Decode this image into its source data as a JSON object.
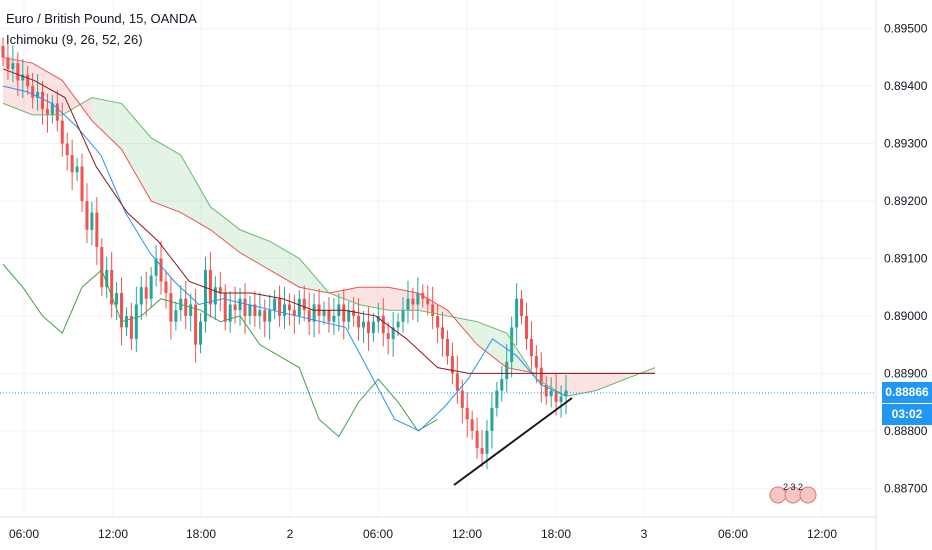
{
  "legend": {
    "symbol": "Euro / British Pound, 15, OANDA",
    "indicator": "Ichimoku (9, 26, 52, 26)"
  },
  "colors": {
    "up": "#26a69a",
    "down": "#ef5350",
    "tenkan": "#2196f3",
    "kijun": "#8b1a1a",
    "chikou": "#43a047",
    "span_a": "#66bb6a",
    "span_b": "#ef5350",
    "price_line": "#2196f3"
  },
  "current": {
    "price": "0.88866",
    "countdown": "03:02"
  },
  "chart_data": {
    "type": "candlestick",
    "title": "Euro / British Pound, 15, OANDA",
    "ylim": [
      0.8865,
      0.8955
    ],
    "y_ticks": [
      0.895,
      0.894,
      0.893,
      0.892,
      0.891,
      0.89,
      0.889,
      0.888,
      0.887
    ],
    "y_tick_labels": [
      "0.89500",
      "0.89400",
      "0.89300",
      "0.89200",
      "0.89100",
      "0.89000",
      "0.88900",
      "0.88800",
      "0.88700"
    ],
    "x_tick_labels": [
      "06:00",
      "12:00",
      "18:00",
      "2",
      "06:00",
      "12:00",
      "18:00",
      "3",
      "06:00",
      "12:00"
    ],
    "grid": true,
    "candles_close": [
      0.8945,
      0.8943,
      0.8944,
      0.8941,
      0.8942,
      0.894,
      0.8938,
      0.8939,
      0.8936,
      0.8935,
      0.8937,
      0.8934,
      0.893,
      0.8928,
      0.8925,
      0.8926,
      0.892,
      0.8915,
      0.8918,
      0.8912,
      0.8905,
      0.8908,
      0.8902,
      0.8904,
      0.8898,
      0.89,
      0.8896,
      0.8902,
      0.8905,
      0.8903,
      0.8907,
      0.891,
      0.8906,
      0.8904,
      0.8899,
      0.8901,
      0.8903,
      0.89,
      0.8902,
      0.8895,
      0.8899,
      0.8908,
      0.8902,
      0.8905,
      0.8904,
      0.8899,
      0.8902,
      0.8901,
      0.8903,
      0.89,
      0.8902,
      0.89,
      0.8901,
      0.8899,
      0.8901,
      0.8903,
      0.89,
      0.8902,
      0.8901,
      0.89,
      0.8903,
      0.8901,
      0.8899,
      0.8902,
      0.89,
      0.8901,
      0.8899,
      0.89,
      0.8902,
      0.8899,
      0.8901,
      0.89,
      0.8898,
      0.8899,
      0.8897,
      0.8899,
      0.89,
      0.8897,
      0.8896,
      0.8898,
      0.8899,
      0.8901,
      0.8903,
      0.8902,
      0.8904,
      0.8903,
      0.8902,
      0.89,
      0.8898,
      0.8896,
      0.8893,
      0.889,
      0.8887,
      0.8884,
      0.8882,
      0.888,
      0.8877,
      0.8876,
      0.888,
      0.8884,
      0.8887,
      0.8889,
      0.8892,
      0.8898,
      0.8903,
      0.89,
      0.8896,
      0.8893,
      0.8891,
      0.8888,
      0.8886,
      0.8887,
      0.8885,
      0.8886,
      0.8887
    ],
    "tenkan": [
      0.894,
      0.8939,
      0.8937,
      0.8933,
      0.8928,
      0.8918,
      0.8911,
      0.8906,
      0.8902,
      0.8903,
      0.8902,
      0.8901,
      0.89,
      0.8899,
      0.8898,
      0.889,
      0.8882,
      0.888,
      0.8884,
      0.8889,
      0.8896,
      0.8893,
      0.8888,
      0.8886
    ],
    "kijun": [
      0.8943,
      0.8941,
      0.8938,
      0.8926,
      0.8918,
      0.8913,
      0.8906,
      0.8904,
      0.8904,
      0.8903,
      0.8901,
      0.8901,
      0.89,
      0.8896,
      0.8891,
      0.889,
      0.889,
      0.889,
      0.889,
      0.889,
      0.889,
      0.889
    ],
    "senkou_a": [
      0.8937,
      0.8935,
      0.8935,
      0.8938,
      0.8937,
      0.8931,
      0.8928,
      0.8919,
      0.8915,
      0.8913,
      0.891,
      0.8904,
      0.8902,
      0.8901,
      0.8901,
      0.89,
      0.8899,
      0.8897,
      0.8889,
      0.8886,
      0.8887,
      0.8889,
      0.8891
    ],
    "senkou_b": [
      0.8945,
      0.8944,
      0.8941,
      0.8934,
      0.8929,
      0.892,
      0.8918,
      0.8915,
      0.8911,
      0.8908,
      0.8905,
      0.8904,
      0.8905,
      0.8905,
      0.8904,
      0.8901,
      0.8895,
      0.8891,
      0.889,
      0.889,
      0.889,
      0.889,
      0.889
    ],
    "chikou": [
      0.8909,
      0.8905,
      0.89,
      0.8897,
      0.8905,
      0.8908,
      0.8899,
      0.89,
      0.8903,
      0.8902,
      0.8901,
      0.8899,
      0.89,
      0.8895,
      0.8893,
      0.8891,
      0.8882,
      0.8879,
      0.8885,
      0.8889,
      0.8885,
      0.888,
      0.8882
    ]
  }
}
